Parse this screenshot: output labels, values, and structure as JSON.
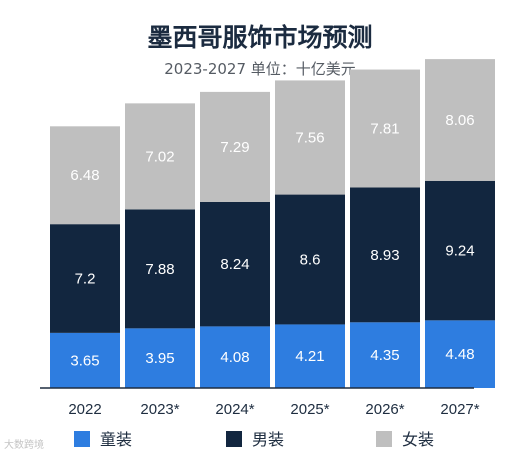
{
  "header": {
    "title": "墨西哥服饰市场预测",
    "subtitle": "2023-2027 单位：十亿美元"
  },
  "watermark": "大数跨境",
  "chart_data": {
    "type": "bar",
    "stacked": true,
    "title": "墨西哥服饰市场预测",
    "subtitle": "2023-2027 单位：十亿美元",
    "categories": [
      "2022",
      "2023*",
      "2024*",
      "2025*",
      "2026*",
      "2027*"
    ],
    "series": [
      {
        "name": "童装",
        "values": [
          3.65,
          3.95,
          4.08,
          4.21,
          4.35,
          4.48
        ],
        "color": "#2e7de0",
        "label_color": "#ffffff"
      },
      {
        "name": "男装",
        "values": [
          7.2,
          7.88,
          8.24,
          8.6,
          8.93,
          9.24
        ],
        "color": "#12263f",
        "label_color": "#ffffff"
      },
      {
        "name": "女装",
        "values": [
          6.48,
          7.02,
          7.29,
          7.56,
          7.81,
          8.06
        ],
        "color": "#bfbfbf",
        "label_color": "#ffffff"
      }
    ],
    "ylim": [
      0,
      22
    ],
    "grid": false,
    "legend_position": "bottom",
    "data_labels": true
  }
}
